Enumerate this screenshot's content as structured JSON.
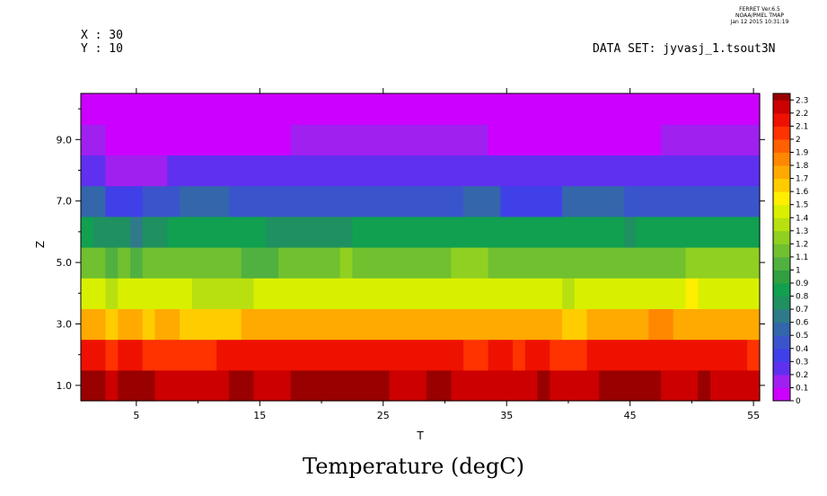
{
  "header": {
    "program": "FERRET Ver.6.5",
    "org": "NOAA/PMEL TMAP",
    "date": "Jan 12 2015 10:31:19",
    "x_label": "X : 30",
    "y_label": "Y : 10",
    "dataset": "DATA SET: jyvasj_1.tsout3N"
  },
  "chart_data": {
    "type": "heatmap",
    "title": "Temperature (degC)",
    "xlabel": "T",
    "ylabel": "Z",
    "xlim": [
      0.5,
      55.5
    ],
    "ylim": [
      0.5,
      10.5
    ],
    "x_ticks": [
      5,
      15,
      25,
      35,
      45,
      55
    ],
    "x_tick_labels": [
      "5",
      "15",
      "25",
      "35",
      "45",
      "55"
    ],
    "y_ticks": [
      1,
      3,
      5,
      7,
      9
    ],
    "y_tick_labels": [
      "1.0",
      "3.0",
      "5.0",
      "7.0",
      "9.0"
    ],
    "colorbar_levels": [
      0,
      0.1,
      0.2,
      0.3,
      0.4,
      0.5,
      0.6,
      0.7,
      0.8,
      0.9,
      1,
      1.1,
      1.2,
      1.3,
      1.4,
      1.5,
      1.6,
      1.7,
      1.8,
      1.9,
      2,
      2.1,
      2.2,
      2.3
    ],
    "colorbar_labels": [
      "0",
      "0.1",
      "0.2",
      "0.3",
      "0.4",
      "0.5",
      "0.6",
      "0.7",
      "0.8",
      "0.9",
      "1",
      "1.1",
      "1.2",
      "1.3",
      "1.4",
      "1.5",
      "1.6",
      "1.7",
      "1.8",
      "1.9",
      "2",
      "2.1",
      "2.2",
      "2.3"
    ],
    "colorbar_colors": [
      "#cc00ff",
      "#a020f0",
      "#6030f0",
      "#4040e8",
      "#3a55cc",
      "#3366aa",
      "#2f7a8a",
      "#1f9060",
      "#10a050",
      "#30a040",
      "#50b040",
      "#70c030",
      "#90d020",
      "#b8e010",
      "#d8f000",
      "#ffee00",
      "#ffcc00",
      "#ffaa00",
      "#ff8800",
      "#ff6000",
      "#ff3300",
      "#ee1100",
      "#cc0000",
      "#990000"
    ],
    "rows": [
      {
        "z": 1,
        "segments": [
          [
            0.5,
            2.5,
            23
          ],
          [
            2.5,
            3.5,
            22
          ],
          [
            3.5,
            6.5,
            23
          ],
          [
            6.5,
            12.5,
            22
          ],
          [
            12.5,
            14.5,
            23
          ],
          [
            14.5,
            17.5,
            22
          ],
          [
            17.5,
            25.5,
            23
          ],
          [
            25.5,
            28.5,
            22
          ],
          [
            28.5,
            30.5,
            23
          ],
          [
            30.5,
            37.5,
            22
          ],
          [
            37.5,
            38.5,
            23
          ],
          [
            38.5,
            42.5,
            22
          ],
          [
            42.5,
            47.5,
            23
          ],
          [
            47.5,
            50.5,
            22
          ],
          [
            50.5,
            51.5,
            23
          ],
          [
            51.5,
            55.5,
            22
          ]
        ]
      },
      {
        "z": 2,
        "segments": [
          [
            0.5,
            2.5,
            21
          ],
          [
            2.5,
            3.5,
            20
          ],
          [
            3.5,
            5.5,
            21
          ],
          [
            5.5,
            11.5,
            20
          ],
          [
            11.5,
            31.5,
            21
          ],
          [
            31.5,
            33.5,
            20
          ],
          [
            33.5,
            35.5,
            21
          ],
          [
            35.5,
            36.5,
            20
          ],
          [
            36.5,
            38.5,
            21
          ],
          [
            38.5,
            41.5,
            20
          ],
          [
            41.5,
            54.5,
            21
          ],
          [
            54.5,
            55.5,
            20
          ]
        ]
      },
      {
        "z": 3,
        "segments": [
          [
            0.5,
            2.5,
            17
          ],
          [
            2.5,
            3.5,
            16
          ],
          [
            3.5,
            5.5,
            17
          ],
          [
            5.5,
            6.5,
            16
          ],
          [
            6.5,
            8.5,
            17
          ],
          [
            8.5,
            13.5,
            16
          ],
          [
            13.5,
            39.5,
            17
          ],
          [
            39.5,
            41.5,
            16
          ],
          [
            41.5,
            46.5,
            17
          ],
          [
            46.5,
            48.5,
            18
          ],
          [
            48.5,
            55.5,
            17
          ]
        ]
      },
      {
        "z": 4,
        "segments": [
          [
            0.5,
            2.5,
            14
          ],
          [
            2.5,
            3.5,
            13
          ],
          [
            3.5,
            9.5,
            14
          ],
          [
            9.5,
            14.5,
            13
          ],
          [
            14.5,
            39.5,
            14
          ],
          [
            39.5,
            40.5,
            13
          ],
          [
            40.5,
            49.5,
            14
          ],
          [
            49.5,
            50.5,
            15
          ],
          [
            50.5,
            55.5,
            14
          ]
        ]
      },
      {
        "z": 5,
        "segments": [
          [
            0.5,
            2.5,
            11
          ],
          [
            2.5,
            3.5,
            10
          ],
          [
            3.5,
            4.5,
            11
          ],
          [
            4.5,
            5.5,
            10
          ],
          [
            5.5,
            13.5,
            11
          ],
          [
            13.5,
            16.5,
            10
          ],
          [
            16.5,
            21.5,
            11
          ],
          [
            21.5,
            22.5,
            12
          ],
          [
            22.5,
            30.5,
            11
          ],
          [
            30.5,
            33.5,
            12
          ],
          [
            33.5,
            49.5,
            11
          ],
          [
            49.5,
            55.5,
            12
          ]
        ]
      },
      {
        "z": 6,
        "segments": [
          [
            0.5,
            1.5,
            8
          ],
          [
            1.5,
            4.5,
            7
          ],
          [
            4.5,
            5.5,
            6
          ],
          [
            5.5,
            7.5,
            7
          ],
          [
            7.5,
            15.5,
            8
          ],
          [
            15.5,
            22.5,
            7
          ],
          [
            22.5,
            44.5,
            8
          ],
          [
            44.5,
            45.5,
            7
          ],
          [
            45.5,
            55.5,
            8
          ]
        ]
      },
      {
        "z": 7,
        "segments": [
          [
            0.5,
            2.5,
            5
          ],
          [
            2.5,
            5.5,
            3
          ],
          [
            5.5,
            8.5,
            4
          ],
          [
            8.5,
            12.5,
            5
          ],
          [
            12.5,
            31.5,
            4
          ],
          [
            31.5,
            34.5,
            5
          ],
          [
            34.5,
            39.5,
            3
          ],
          [
            39.5,
            44.5,
            5
          ],
          [
            44.5,
            55.5,
            4
          ]
        ]
      },
      {
        "z": 8,
        "segments": [
          [
            0.5,
            2.5,
            2
          ],
          [
            2.5,
            7.5,
            1
          ],
          [
            7.5,
            55.5,
            2
          ]
        ]
      },
      {
        "z": 9,
        "segments": [
          [
            0.5,
            2.5,
            1
          ],
          [
            2.5,
            17.5,
            0
          ],
          [
            17.5,
            33.5,
            1
          ],
          [
            33.5,
            47.5,
            0
          ],
          [
            47.5,
            55.5,
            1
          ]
        ]
      },
      {
        "z": 10,
        "segments": [
          [
            0.5,
            55.5,
            0
          ]
        ]
      }
    ]
  }
}
